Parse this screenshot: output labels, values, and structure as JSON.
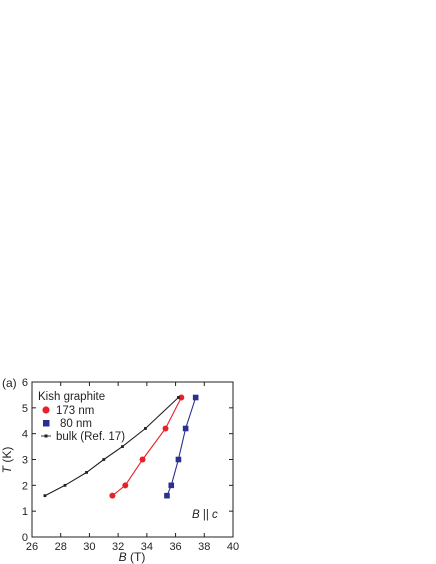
{
  "chart_data": {
    "type": "line",
    "panel_label": "(a)",
    "xlabel_var": "B",
    "xlabel_unit": " (T)",
    "ylabel_var": "T",
    "ylabel_unit": " (K)",
    "xlim": [
      26,
      40
    ],
    "ylim": [
      0,
      6
    ],
    "xticks": [
      26,
      28,
      30,
      32,
      34,
      36,
      38,
      40
    ],
    "yticks": [
      0,
      1,
      2,
      3,
      4,
      5,
      6
    ],
    "grid": false,
    "legend_title": "Kish graphite",
    "legend_position": "top-left",
    "annotation": {
      "var_b": "B",
      "parallel": " || ",
      "var_c": "c"
    },
    "series": [
      {
        "name": "173 nm",
        "color": "#e8202a",
        "marker": "circle",
        "x": [
          31.6,
          32.5,
          33.7,
          35.3,
          36.4
        ],
        "y": [
          1.6,
          2.0,
          3.0,
          4.2,
          5.4
        ]
      },
      {
        "name": "80 nm",
        "color": "#2b2f8f",
        "marker": "square",
        "x": [
          35.4,
          35.7,
          36.2,
          36.7,
          37.4
        ],
        "y": [
          1.6,
          2.0,
          3.0,
          4.2,
          5.4
        ]
      },
      {
        "name": "bulk (Ref. 17)",
        "color": "#231f20",
        "marker": "dot",
        "x": [
          26.9,
          28.3,
          29.8,
          31.0,
          32.3,
          33.9,
          36.2
        ],
        "y": [
          1.6,
          2.0,
          2.5,
          3.0,
          3.5,
          4.2,
          5.4
        ]
      }
    ]
  }
}
